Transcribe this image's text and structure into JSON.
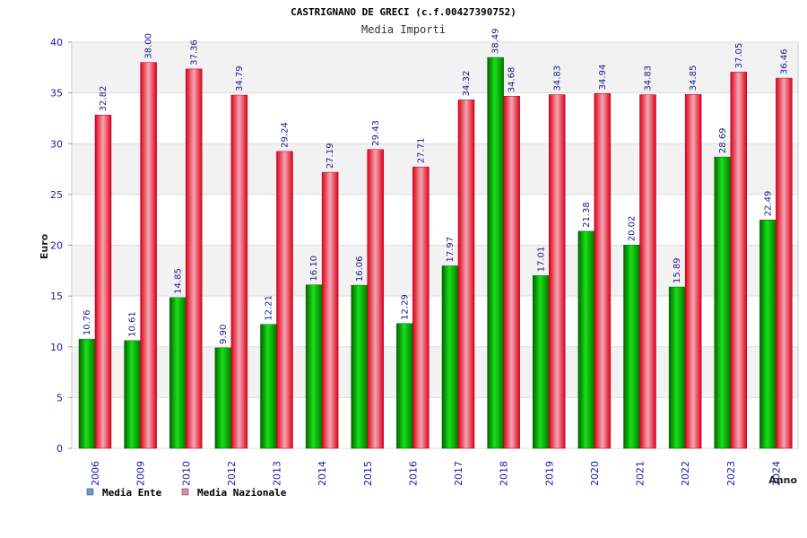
{
  "chart_data": {
    "type": "bar",
    "title": "CASTRIGNANO DE GRECI (c.f.00427390752)",
    "subtitle": "Media Importi",
    "xlabel": "Anno",
    "ylabel": "Euro",
    "ylim": [
      0,
      40
    ],
    "yticks": [
      "0",
      "5",
      "10",
      "15",
      "20",
      "25",
      "30",
      "35",
      "40"
    ],
    "grid": true,
    "legend_position": "bottom-left",
    "categories": [
      "2006",
      "2009",
      "2010",
      "2012",
      "2013",
      "2014",
      "2015",
      "2016",
      "2017",
      "2018",
      "2019",
      "2020",
      "2021",
      "2022",
      "2023",
      "2024"
    ],
    "series": [
      {
        "name": "Media Ente",
        "color": "#00b000",
        "legend_color": "#5b9bd5",
        "values": [
          10.76,
          10.61,
          14.85,
          9.9,
          12.21,
          16.1,
          16.06,
          12.29,
          17.97,
          38.49,
          17.01,
          21.38,
          20.02,
          15.89,
          28.69,
          22.49
        ],
        "labels": [
          "10.76",
          "10.61",
          "14.85",
          "9.90",
          "12.21",
          "16.10",
          "16.06",
          "12.29",
          "17.97",
          "38.49",
          "17.01",
          "21.38",
          "20.02",
          "15.89",
          "28.69",
          "22.49"
        ]
      },
      {
        "name": "Media Nazionale",
        "color": "#e8102a",
        "legend_color": "#d98cb3",
        "values": [
          32.82,
          38.0,
          37.36,
          34.79,
          29.24,
          27.19,
          29.43,
          27.71,
          34.32,
          34.68,
          34.83,
          34.94,
          34.83,
          34.85,
          37.05,
          36.46
        ],
        "labels": [
          "32.82",
          "38.00",
          "37.36",
          "34.79",
          "29.24",
          "27.19",
          "29.43",
          "27.71",
          "34.32",
          "34.68",
          "34.83",
          "34.94",
          "34.83",
          "34.85",
          "37.05",
          "36.46"
        ]
      }
    ]
  }
}
